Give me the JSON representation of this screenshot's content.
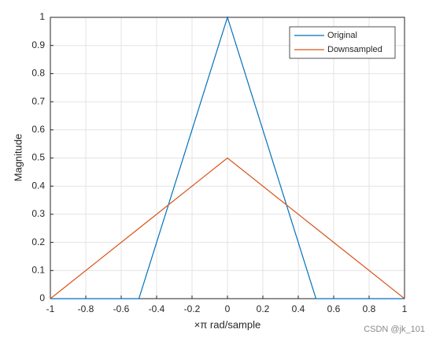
{
  "chart_data": {
    "type": "line",
    "x": [
      -1,
      -0.5,
      0,
      0.5,
      1
    ],
    "series": [
      {
        "name": "Original",
        "color": "#0072BD",
        "values": [
          0,
          0,
          1,
          0,
          0
        ]
      },
      {
        "name": "Downsampled",
        "color": "#D95319",
        "values": [
          0,
          0.25,
          0.5,
          0.25,
          0
        ]
      }
    ],
    "xlabel": "×π rad/sample",
    "ylabel": "Magnitude",
    "xlim": [
      -1,
      1
    ],
    "ylim": [
      0,
      1
    ],
    "xticks": [
      -1,
      -0.8,
      -0.6,
      -0.4,
      -0.2,
      0,
      0.2,
      0.4,
      0.6,
      0.8,
      1
    ],
    "yticks": [
      0,
      0.1,
      0.2,
      0.3,
      0.4,
      0.5,
      0.6,
      0.7,
      0.8,
      0.9,
      1
    ],
    "grid": true,
    "legend": "northeast",
    "watermark": "CSDN @jk_101"
  }
}
